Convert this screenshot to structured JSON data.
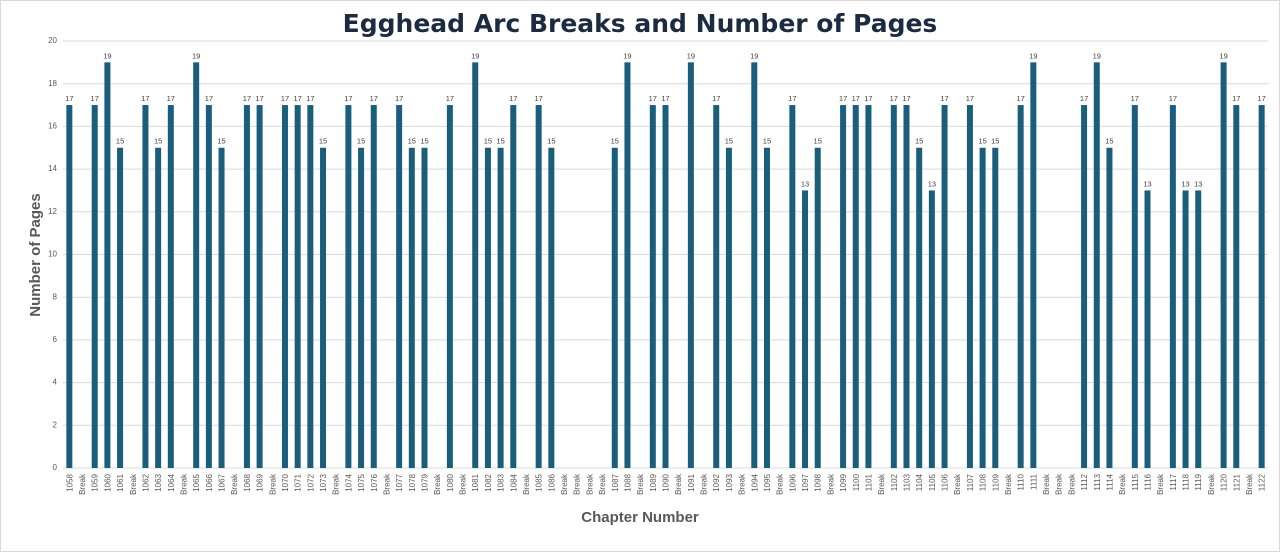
{
  "chart_data": {
    "type": "bar",
    "title": "Egghead Arc Breaks and Number of Pages",
    "x_label": "Chapter Number",
    "y_label": "Number of Pages",
    "color": "#1b5e7c",
    "grid": true,
    "ylim": [
      0,
      20
    ],
    "yticks": [
      0,
      2,
      4,
      6,
      8,
      10,
      12,
      14,
      16,
      18,
      20
    ],
    "categories": [
      "1058",
      "Break",
      "1059",
      "1060",
      "1061",
      "Break",
      "1062",
      "1063",
      "1064",
      "Break",
      "1065",
      "1066",
      "1067",
      "Break",
      "1068",
      "1069",
      "Break",
      "1070",
      "1071",
      "1072",
      "1073",
      "Break",
      "1074",
      "1075",
      "1076",
      "Break",
      "1077",
      "1078",
      "1079",
      "Break",
      "1080",
      "Break",
      "1081",
      "1082",
      "1083",
      "1084",
      "Break",
      "1085",
      "1086",
      "Break",
      "Break",
      "Break",
      "Break",
      "1087",
      "1088",
      "Break",
      "1089",
      "1090",
      "Break",
      "1091",
      "Break",
      "1092",
      "1093",
      "Break",
      "1094",
      "1095",
      "Break",
      "1096",
      "1097",
      "1098",
      "Break",
      "1099",
      "1100",
      "1101",
      "Break",
      "1102",
      "1103",
      "1104",
      "1105",
      "1106",
      "Break",
      "1107",
      "1108",
      "1109",
      "Break",
      "1110",
      "1111",
      "Break",
      "Break",
      "Break",
      "1112",
      "1113",
      "1114",
      "Break",
      "1115",
      "1116",
      "Break",
      "1117",
      "1118",
      "1119",
      "Break",
      "1120",
      "1121",
      "Break",
      "1122"
    ],
    "values": [
      17,
      null,
      17,
      19,
      15,
      null,
      17,
      15,
      17,
      null,
      19,
      17,
      15,
      null,
      17,
      17,
      null,
      17,
      17,
      17,
      15,
      null,
      17,
      15,
      17,
      null,
      17,
      15,
      15,
      null,
      17,
      null,
      19,
      15,
      15,
      17,
      null,
      17,
      15,
      null,
      null,
      null,
      null,
      15,
      19,
      null,
      17,
      17,
      null,
      19,
      null,
      17,
      15,
      null,
      19,
      15,
      null,
      17,
      13,
      15,
      null,
      17,
      17,
      17,
      null,
      17,
      17,
      15,
      13,
      17,
      null,
      17,
      15,
      15,
      null,
      17,
      19,
      null,
      null,
      null,
      17,
      19,
      15,
      null,
      17,
      13,
      null,
      17,
      13,
      13,
      null,
      19,
      17,
      null,
      17
    ]
  }
}
